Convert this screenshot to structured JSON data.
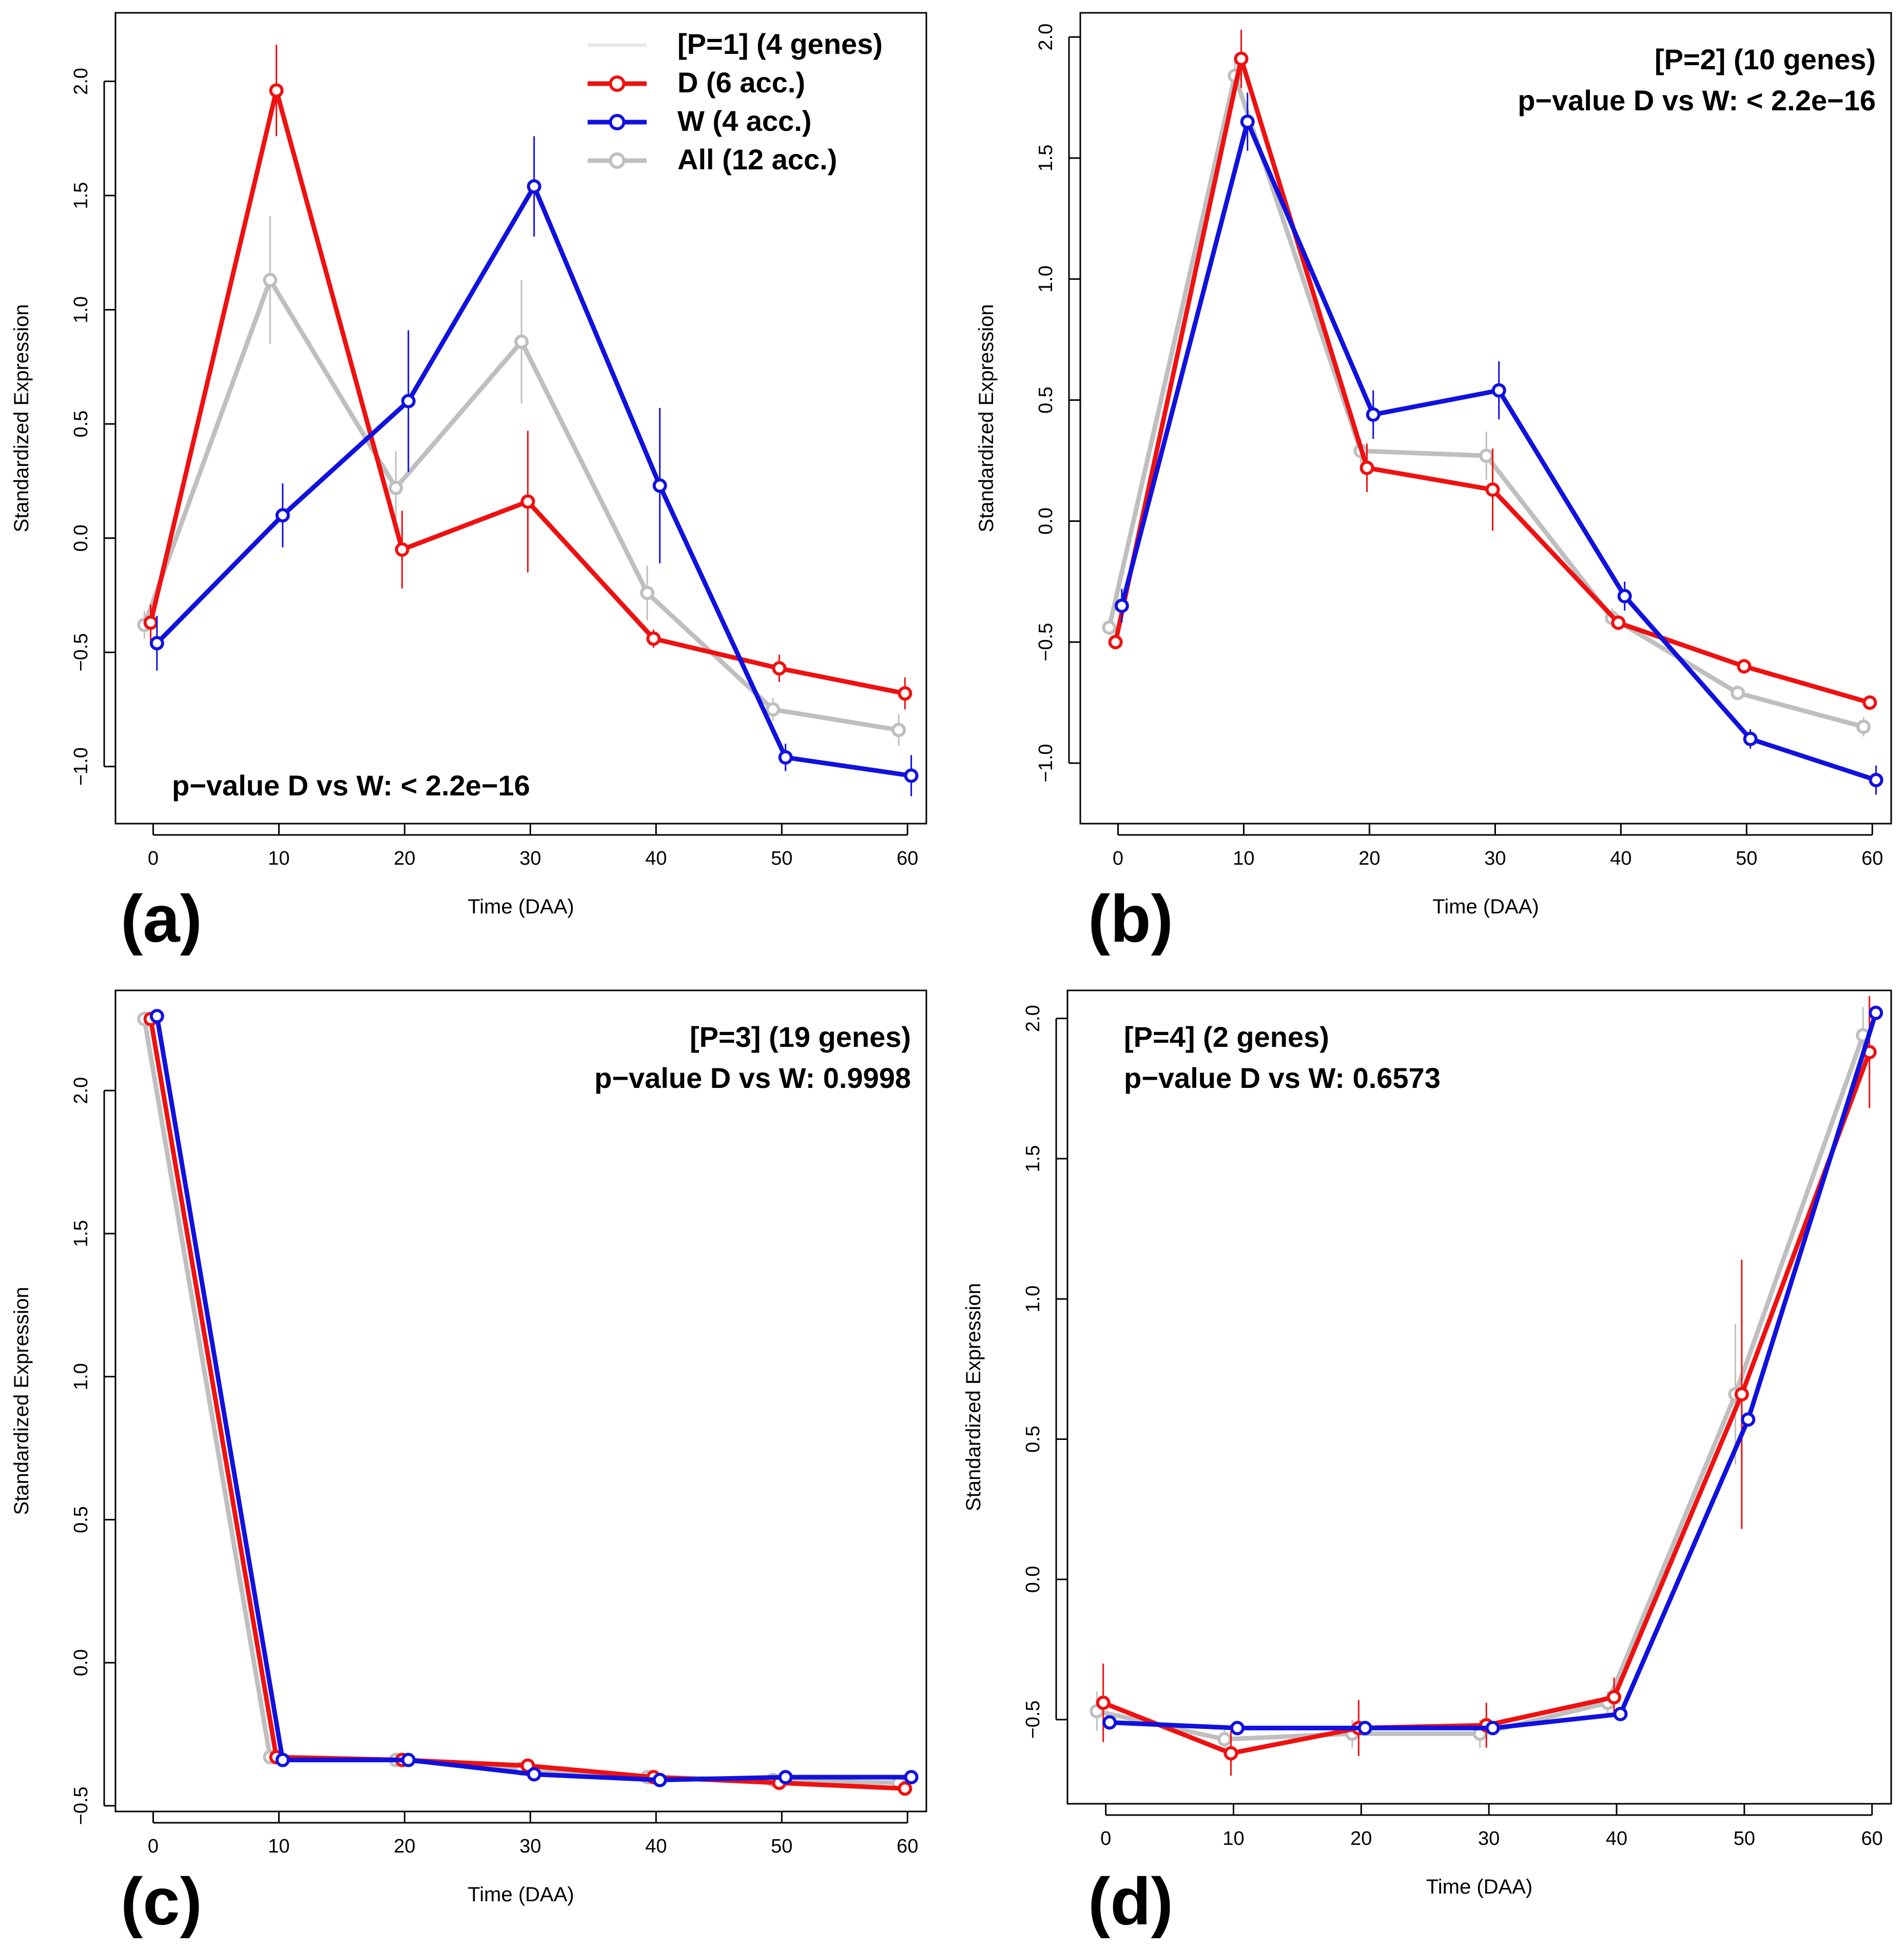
{
  "colors": {
    "D": "#ee1111",
    "W": "#1111dd",
    "All": "#bfbfbf"
  },
  "chart_data": [
    {
      "type": "line",
      "panel_label": "(a)",
      "xlabel": "Time (DAA)",
      "ylabel": "Standardized Expression",
      "x": [
        0,
        10,
        20,
        30,
        40,
        50,
        60
      ],
      "xlim": [
        -3,
        61.5
      ],
      "ylim": [
        -1.25,
        2.3
      ],
      "yticks": [
        -1.0,
        -0.5,
        0.0,
        0.5,
        1.0,
        1.5,
        2.0
      ],
      "ytick_labels": [
        "−1.0",
        "−0.5",
        "0.0",
        "0.5",
        "1.0",
        "1.5",
        "2.0"
      ],
      "xticks": [
        0,
        10,
        20,
        30,
        40,
        50,
        60
      ],
      "xtick_labels": [
        "0",
        "10",
        "20",
        "30",
        "40",
        "50",
        "60"
      ],
      "legend": {
        "placement": "top-right",
        "entries": [
          {
            "label": "[P=1] (4 genes)",
            "series": "header"
          },
          {
            "label": "D (6 acc.)",
            "series": "D"
          },
          {
            "label": "W (4 acc.)",
            "series": "W"
          },
          {
            "label": "All (12 acc.)",
            "series": "All"
          }
        ]
      },
      "annotation_lines": [
        "p−value D vs W: < 2.2e−16"
      ],
      "annotation_placement": "bottom-left",
      "series": [
        {
          "name": "All",
          "values": [
            -0.38,
            1.13,
            0.22,
            0.86,
            -0.24,
            -0.75,
            -0.84
          ],
          "err": [
            0.06,
            0.28,
            0.16,
            0.27,
            0.12,
            0.05,
            0.07
          ]
        },
        {
          "name": "D",
          "values": [
            -0.37,
            1.96,
            -0.05,
            0.16,
            -0.44,
            -0.57,
            -0.68
          ],
          "err": [
            0.08,
            0.2,
            0.17,
            0.31,
            0.04,
            0.06,
            0.07
          ]
        },
        {
          "name": "W",
          "values": [
            -0.46,
            0.1,
            0.6,
            1.54,
            0.23,
            -0.96,
            -1.04
          ],
          "err": [
            0.12,
            0.14,
            0.31,
            0.22,
            0.34,
            0.06,
            0.09
          ]
        }
      ]
    },
    {
      "type": "line",
      "panel_label": "(b)",
      "xlabel": "Time (DAA)",
      "ylabel": "Standardized Expression",
      "x": [
        0,
        10,
        20,
        30,
        40,
        50,
        60
      ],
      "xlim": [
        -3,
        61.5
      ],
      "ylim": [
        -1.25,
        2.1
      ],
      "yticks": [
        -1.0,
        -0.5,
        0.0,
        0.5,
        1.0,
        1.5,
        2.0
      ],
      "ytick_labels": [
        "−1.0",
        "−0.5",
        "0.0",
        "0.5",
        "1.0",
        "1.5",
        "2.0"
      ],
      "xticks": [
        0,
        10,
        20,
        30,
        40,
        50,
        60
      ],
      "xtick_labels": [
        "0",
        "10",
        "20",
        "30",
        "40",
        "50",
        "60"
      ],
      "annotation_lines": [
        "[P=2] (10 genes)",
        "p−value D vs W: < 2.2e−16"
      ],
      "annotation_placement": "top-right",
      "series": [
        {
          "name": "All",
          "values": [
            -0.44,
            1.84,
            0.29,
            0.27,
            -0.4,
            -0.71,
            -0.85
          ],
          "err": [
            0.03,
            0.07,
            0.05,
            0.1,
            0.04,
            0.03,
            0.04
          ]
        },
        {
          "name": "D",
          "values": [
            -0.5,
            1.91,
            0.22,
            0.13,
            -0.42,
            -0.6,
            -0.75
          ],
          "err": [
            0.02,
            0.12,
            0.1,
            0.17,
            0.03,
            0.03,
            0.03
          ]
        },
        {
          "name": "W",
          "values": [
            -0.35,
            1.65,
            0.44,
            0.54,
            -0.31,
            -0.9,
            -1.07
          ],
          "err": [
            0.07,
            0.12,
            0.1,
            0.12,
            0.06,
            0.04,
            0.06
          ]
        }
      ]
    },
    {
      "type": "line",
      "panel_label": "(c)",
      "xlabel": "Time (DAA)",
      "ylabel": "Standardized Expression",
      "x": [
        0,
        10,
        20,
        30,
        40,
        50,
        60
      ],
      "xlim": [
        -3,
        61.5
      ],
      "ylim": [
        -0.52,
        2.35
      ],
      "yticks": [
        -0.5,
        0.0,
        0.5,
        1.0,
        1.5,
        2.0
      ],
      "ytick_labels": [
        "−0.5",
        "0.0",
        "0.5",
        "1.0",
        "1.5",
        "2.0"
      ],
      "xticks": [
        0,
        10,
        20,
        30,
        40,
        50,
        60
      ],
      "xtick_labels": [
        "0",
        "10",
        "20",
        "30",
        "40",
        "50",
        "60"
      ],
      "annotation_lines": [
        "[P=3] (19 genes)",
        "p−value D vs W: 0.9998"
      ],
      "annotation_placement": "top-right",
      "series": [
        {
          "name": "All",
          "values": [
            2.25,
            -0.33,
            -0.34,
            -0.37,
            -0.4,
            -0.41,
            -0.42
          ],
          "err": [
            0,
            0,
            0,
            0,
            0,
            0,
            0
          ]
        },
        {
          "name": "D",
          "values": [
            2.25,
            -0.33,
            -0.34,
            -0.36,
            -0.4,
            -0.42,
            -0.44
          ],
          "err": [
            0,
            0,
            0,
            0,
            0,
            0,
            0
          ]
        },
        {
          "name": "W",
          "values": [
            2.26,
            -0.34,
            -0.34,
            -0.39,
            -0.41,
            -0.4,
            -0.4
          ],
          "err": [
            0,
            0,
            0,
            0,
            0,
            0,
            0
          ]
        }
      ]
    },
    {
      "type": "line",
      "panel_label": "(d)",
      "xlabel": "Time (DAA)",
      "ylabel": "Standardized Expression",
      "x": [
        0,
        10,
        20,
        30,
        40,
        50,
        60
      ],
      "xlim": [
        -3,
        61.5
      ],
      "ylim": [
        -0.8,
        2.1
      ],
      "yticks": [
        -0.5,
        0.0,
        0.5,
        1.0,
        1.5,
        2.0
      ],
      "ytick_labels": [
        "−0.5",
        "0.0",
        "0.5",
        "1.0",
        "1.5",
        "2.0"
      ],
      "xticks": [
        0,
        10,
        20,
        30,
        40,
        50,
        60
      ],
      "xtick_labels": [
        "0",
        "10",
        "20",
        "30",
        "40",
        "50",
        "60"
      ],
      "annotation_lines": [
        "[P=4] (2 genes)",
        "p−value D vs W: 0.6573"
      ],
      "annotation_placement": "top-left",
      "series": [
        {
          "name": "All",
          "values": [
            -0.47,
            -0.57,
            -0.55,
            -0.55,
            -0.44,
            0.66,
            1.94
          ],
          "err": [
            0.07,
            0.04,
            0.05,
            0.05,
            0.04,
            0.25,
            0.1
          ]
        },
        {
          "name": "D",
          "values": [
            -0.44,
            -0.62,
            -0.53,
            -0.52,
            -0.42,
            0.66,
            1.88
          ],
          "err": [
            0.14,
            0.08,
            0.1,
            0.08,
            0.07,
            0.48,
            0.2
          ]
        },
        {
          "name": "W",
          "values": [
            -0.51,
            -0.53,
            -0.53,
            -0.53,
            -0.48,
            0.57,
            2.02
          ],
          "err": [
            0,
            0,
            0,
            0,
            0,
            0,
            0
          ]
        }
      ]
    }
  ]
}
